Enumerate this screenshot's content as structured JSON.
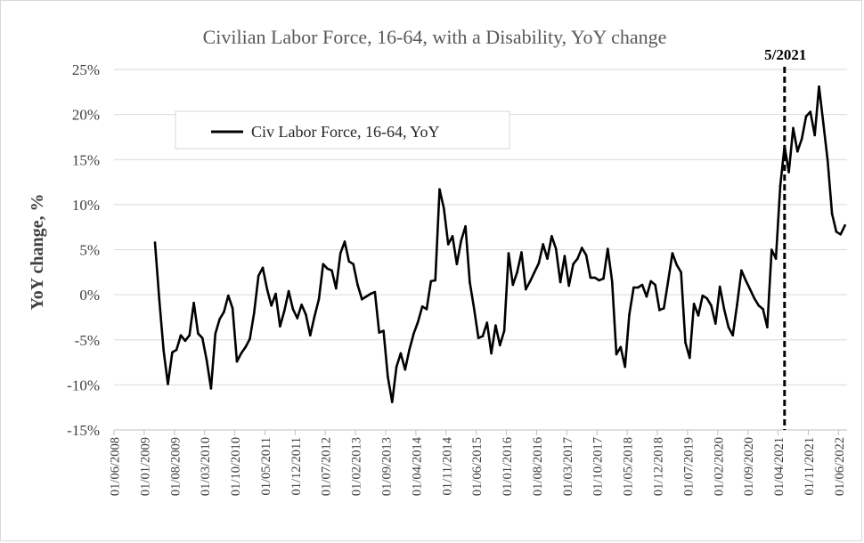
{
  "chart_data": {
    "type": "line",
    "title": "Civilian Labor Force, 16-64, with a Disability, YoY change",
    "xlabel": "",
    "ylabel": "YoY change, %",
    "ylim": [
      -15,
      25
    ],
    "yticks": [
      -15,
      -10,
      -5,
      0,
      5,
      10,
      15,
      20,
      25
    ],
    "ytick_labels": [
      "-15%",
      "-10%",
      "-5%",
      "0%",
      "5%",
      "10%",
      "15%",
      "20%",
      "25%"
    ],
    "x_categories": [
      "01/06/2008",
      "01/01/2009",
      "01/08/2009",
      "01/03/2010",
      "01/10/2010",
      "01/05/2011",
      "01/12/2011",
      "01/07/2012",
      "01/02/2013",
      "01/09/2013",
      "01/04/2014",
      "01/11/2014",
      "01/06/2015",
      "01/01/2016",
      "01/08/2016",
      "01/03/2017",
      "01/10/2017",
      "01/05/2018",
      "01/12/2018",
      "01/07/2019",
      "01/02/2020",
      "01/09/2020",
      "01/04/2021",
      "01/11/2021",
      "01/06/2022"
    ],
    "grid": true,
    "legend_position": "top-left",
    "series": [
      {
        "name": "Civ Labor Force, 16-64, YoY",
        "color": "#000000",
        "start_index": 9,
        "values": [
          5.8,
          -0.5,
          -6.2,
          -9.9,
          -6.4,
          -6.1,
          -4.5,
          -5.1,
          -4.5,
          -0.9,
          -4.3,
          -4.8,
          -7.3,
          -10.4,
          -4.3,
          -2.7,
          -1.9,
          -0.1,
          -1.5,
          -7.4,
          -6.5,
          -5.8,
          -4.9,
          -2.0,
          2.1,
          3.0,
          0.6,
          -1.2,
          0.1,
          -3.5,
          -1.8,
          0.4,
          -1.6,
          -2.6,
          -1.1,
          -2.2,
          -4.5,
          -2.4,
          -0.5,
          3.4,
          2.9,
          2.7,
          0.7,
          4.6,
          5.9,
          3.7,
          3.4,
          1.1,
          -0.5,
          -0.2,
          0.1,
          0.3,
          -4.2,
          -4.0,
          -9.1,
          -11.9,
          -8.0,
          -6.5,
          -8.3,
          -6.1,
          -4.3,
          -3.0,
          -1.3,
          -1.6,
          1.5,
          1.6,
          11.7,
          9.6,
          5.6,
          6.5,
          3.4,
          6.0,
          7.6,
          1.4,
          -1.5,
          -4.8,
          -4.6,
          -3.1,
          -6.5,
          -3.4,
          -5.6,
          -4.0,
          4.6,
          1.1,
          2.5,
          4.7,
          0.6,
          1.5,
          2.5,
          3.5,
          5.6,
          4.0,
          6.5,
          5.1,
          1.4,
          4.3,
          1.0,
          3.4,
          4.0,
          5.2,
          4.4,
          1.9,
          1.9,
          1.6,
          1.8,
          5.1,
          1.5,
          -6.6,
          -5.8,
          -8.0,
          -2.2,
          0.8,
          0.8,
          1.1,
          -0.2,
          1.5,
          1.1,
          -1.7,
          -1.5,
          1.5,
          4.6,
          3.3,
          2.5,
          -5.3,
          -7.0,
          -1.0,
          -2.3,
          -0.1,
          -0.4,
          -1.2,
          -3.2,
          0.9,
          -1.6,
          -3.6,
          -4.5,
          -1.1,
          2.7,
          1.6,
          0.6,
          -0.4,
          -1.2,
          -1.6,
          -3.6,
          5.0,
          4.0,
          12.1,
          16.5,
          13.6,
          18.5,
          15.9,
          17.3,
          19.8,
          20.3,
          17.7,
          23.1,
          19.0,
          14.9,
          9.0,
          7.0,
          6.7,
          7.7
        ]
      }
    ],
    "annotations": [
      {
        "type": "vertical-dashed-line",
        "x_index": 155,
        "label": "5/2021"
      }
    ]
  }
}
